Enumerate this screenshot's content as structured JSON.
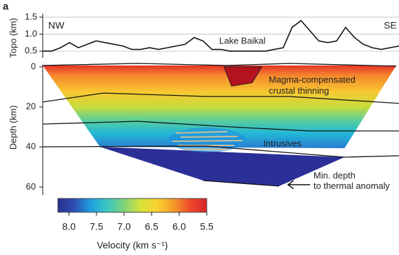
{
  "chart_data": [
    {
      "type": "line",
      "panel_label": "a",
      "y_label": "Topo (km)",
      "left_label": "NW",
      "right_label": "SE",
      "annotation": "Lake Baikal",
      "color": "#111111",
      "categories": [
        null,
        null,
        null,
        null,
        null,
        null,
        null,
        null,
        null,
        null,
        null,
        null,
        null,
        null,
        null,
        null,
        null,
        null,
        null,
        null,
        null,
        null,
        null,
        null,
        null,
        null,
        null,
        null,
        null,
        null,
        null,
        null,
        null,
        null,
        null,
        null,
        null,
        null,
        null,
        null,
        null
      ],
      "values": [
        0.5,
        0.5,
        0.6,
        0.75,
        0.6,
        0.7,
        0.8,
        0.75,
        0.7,
        0.65,
        0.55,
        0.55,
        0.6,
        0.55,
        0.6,
        0.65,
        0.7,
        0.9,
        0.8,
        0.55,
        0.55,
        0.5,
        0.5,
        0.5,
        0.5,
        0.5,
        0.55,
        0.6,
        1.2,
        1.4,
        1.1,
        0.8,
        0.75,
        0.8,
        1.2,
        0.9,
        0.7,
        0.6,
        0.55,
        0.6,
        0.65
      ],
      "ylim": [
        0.3,
        1.6
      ],
      "yticks": [
        {
          "value": 0.5,
          "label": "0.5"
        },
        {
          "value": 1,
          "label": "1.0"
        },
        {
          "value": 1.5,
          "label": "1.5"
        }
      ],
      "grid": true
    },
    {
      "type": "section",
      "y_label": "Depth (km)",
      "ylim": [
        64,
        -1
      ],
      "yticks": [
        0,
        20,
        40,
        60
      ],
      "annotations": [
        [
          "Magma-compensated",
          "crustal thinning"
        ],
        [
          "Intrusives"
        ],
        [
          "Min. depth",
          "to thermal anomaly"
        ]
      ]
    },
    {
      "type": "colorbar",
      "x_label": "Velocity (km s⁻¹)",
      "xlim": [
        8.2,
        5.5
      ],
      "xticks": [
        {
          "value": 8,
          "label": "8.0"
        },
        {
          "value": 7.5,
          "label": "7.5"
        },
        {
          "value": 7,
          "label": "7.0"
        },
        {
          "value": 6.5,
          "label": "6.5"
        },
        {
          "value": 6,
          "label": "6.0"
        },
        {
          "value": 5.5,
          "label": "5.5"
        }
      ],
      "colors": [
        "#2a2f8c",
        "#2d4fb5",
        "#1ea0e0",
        "#3cc8c0",
        "#7fd37a",
        "#d7e23a",
        "#fbd130",
        "#f59a2a",
        "#ee4a2a",
        "#d9232a"
      ]
    }
  ]
}
